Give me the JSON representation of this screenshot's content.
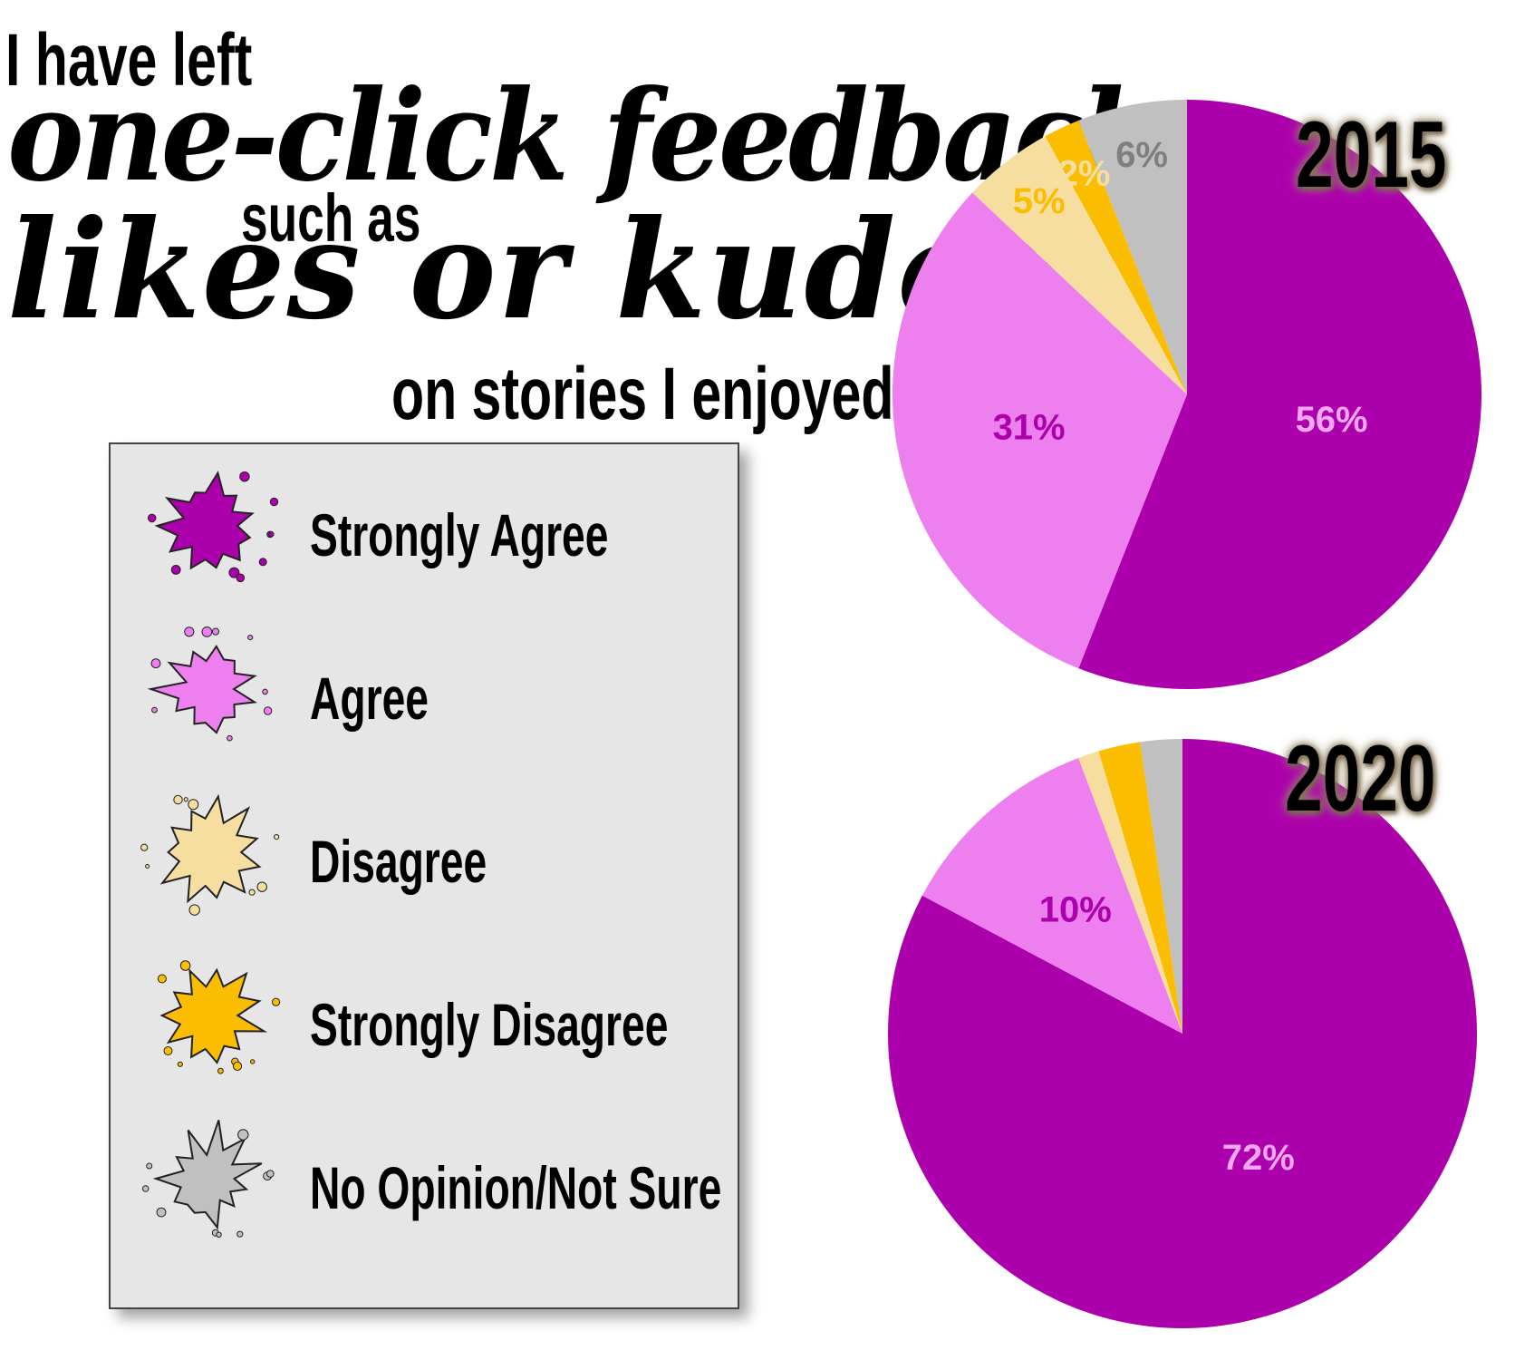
{
  "title": {
    "line1": "I have left",
    "line2": "one-click feedback",
    "line3": "such as",
    "line4": "likes or kudos",
    "line5": "on stories I enjoyed."
  },
  "legend": [
    {
      "label": "Strongly Agree",
      "color": "#ac00ac"
    },
    {
      "label": "Agree",
      "color": "#ee7fee"
    },
    {
      "label": "Disagree",
      "color": "#f5dea0"
    },
    {
      "label": "Strongly Disagree",
      "color": "#fbbd00"
    },
    {
      "label": "No Opinion/Not Sure",
      "color": "#c0c0c0"
    }
  ],
  "chart_data": [
    {
      "type": "pie",
      "title": "2015",
      "categories": [
        "Strongly Agree",
        "Agree",
        "Disagree",
        "Strongly Disagree",
        "No Opinion/Not Sure"
      ],
      "values": [
        56,
        31,
        5,
        2,
        6
      ],
      "labels": [
        "56%",
        "31%",
        "5%",
        "2%",
        "6%"
      ],
      "label_colors": [
        "#f2a7f2",
        "#ac00ac",
        "#fbbd00",
        "#f5dea0",
        "#7f7f7f"
      ],
      "colors": [
        "#ac00ac",
        "#ee7fee",
        "#f5dea0",
        "#fbbd00",
        "#c0c0c0"
      ]
    },
    {
      "type": "pie",
      "title": "2020",
      "categories": [
        "Strongly Agree",
        "Agree",
        "Disagree",
        "Strongly Disagree",
        "No Opinion/Not Sure"
      ],
      "values": [
        72,
        10,
        1,
        2,
        2
      ],
      "labels": [
        "72%",
        "10%",
        "",
        "",
        ""
      ],
      "label_colors": [
        "#f2a7f2",
        "#ac00ac",
        "#fbbd00",
        "#f5dea0",
        "#7f7f7f"
      ],
      "colors": [
        "#ac00ac",
        "#ee7fee",
        "#f5dea0",
        "#fbbd00",
        "#c0c0c0"
      ]
    }
  ]
}
